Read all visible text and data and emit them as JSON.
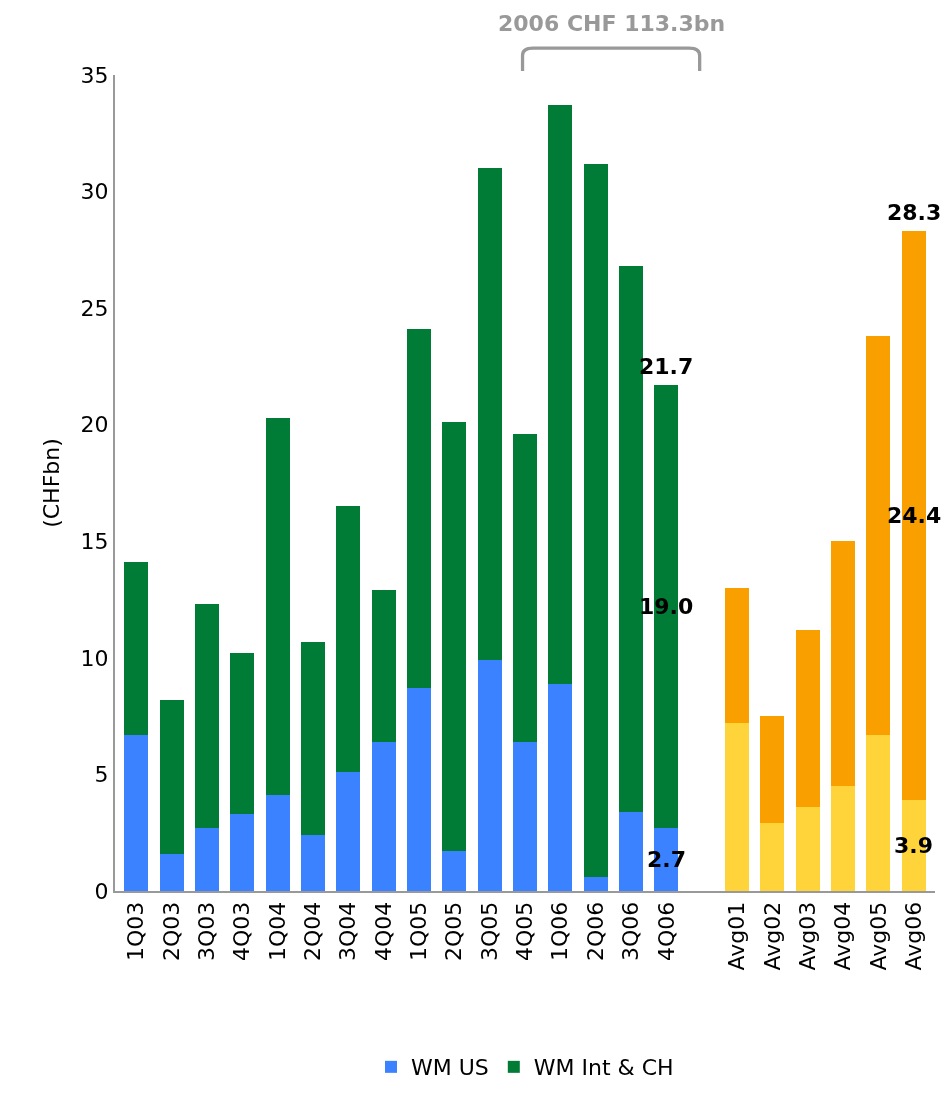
{
  "chart_data": {
    "type": "bar",
    "stacked": true,
    "ylabel": "(CHFbn)",
    "categories": [
      "1Q03",
      "2Q03",
      "3Q03",
      "4Q03",
      "1Q04",
      "2Q04",
      "3Q04",
      "4Q04",
      "1Q05",
      "2Q05",
      "3Q05",
      "4Q05",
      "1Q06",
      "2Q06",
      "3Q06",
      "4Q06",
      null,
      "Avg01",
      "Avg02",
      "Avg03",
      "Avg04",
      "Avg05",
      "Avg06"
    ],
    "series": [
      {
        "name": "WM US",
        "colors": [
          "#3a82ff",
          "#3a82ff",
          "#3a82ff",
          "#3a82ff",
          "#3a82ff",
          "#3a82ff",
          "#3a82ff",
          "#3a82ff",
          "#3a82ff",
          "#3a82ff",
          "#3a82ff",
          "#3a82ff",
          "#3a82ff",
          "#3a82ff",
          "#3a82ff",
          "#3a82ff",
          null,
          "#ffd43b",
          "#ffd43b",
          "#ffd43b",
          "#ffd43b",
          "#ffd43b",
          "#ffd43b"
        ],
        "values": [
          6.7,
          1.6,
          2.7,
          3.3,
          4.1,
          2.4,
          5.1,
          6.4,
          8.7,
          1.7,
          9.9,
          6.4,
          8.9,
          0.6,
          3.4,
          2.7,
          null,
          7.2,
          2.9,
          3.6,
          4.5,
          6.7,
          3.9
        ],
        "value_labels": [
          null,
          null,
          null,
          null,
          null,
          null,
          null,
          null,
          null,
          null,
          null,
          null,
          null,
          null,
          null,
          "2.7",
          null,
          null,
          null,
          null,
          null,
          null,
          "3.9"
        ]
      },
      {
        "name": "WM Int & CH",
        "colors": [
          "#007c36",
          "#007c36",
          "#007c36",
          "#007c36",
          "#007c36",
          "#007c36",
          "#007c36",
          "#007c36",
          "#007c36",
          "#007c36",
          "#007c36",
          "#007c36",
          "#007c36",
          "#007c36",
          "#007c36",
          "#007c36",
          null,
          "#f9a000",
          "#f9a000",
          "#f9a000",
          "#f9a000",
          "#f9a000",
          "#f9a000"
        ],
        "values": [
          7.4,
          6.6,
          9.6,
          6.9,
          16.2,
          8.3,
          11.4,
          6.5,
          15.4,
          18.4,
          21.1,
          13.2,
          24.8,
          30.6,
          23.4,
          19.0,
          null,
          5.8,
          4.6,
          7.6,
          10.5,
          17.1,
          24.4
        ],
        "value_labels": [
          null,
          null,
          null,
          null,
          null,
          null,
          null,
          null,
          null,
          null,
          null,
          null,
          null,
          null,
          null,
          "19.0",
          null,
          null,
          null,
          null,
          null,
          null,
          "24.4"
        ]
      }
    ],
    "totals": [
      null,
      null,
      null,
      null,
      null,
      null,
      null,
      null,
      null,
      null,
      null,
      null,
      null,
      null,
      null,
      "21.7",
      null,
      null,
      null,
      null,
      null,
      null,
      "28.3"
    ],
    "annotations": [
      "2006 CHF 113.3bn"
    ],
    "ylim": [
      0,
      35
    ],
    "yticks": [
      0,
      5,
      10,
      15,
      20,
      25,
      30,
      35
    ],
    "legend": "bottom"
  }
}
